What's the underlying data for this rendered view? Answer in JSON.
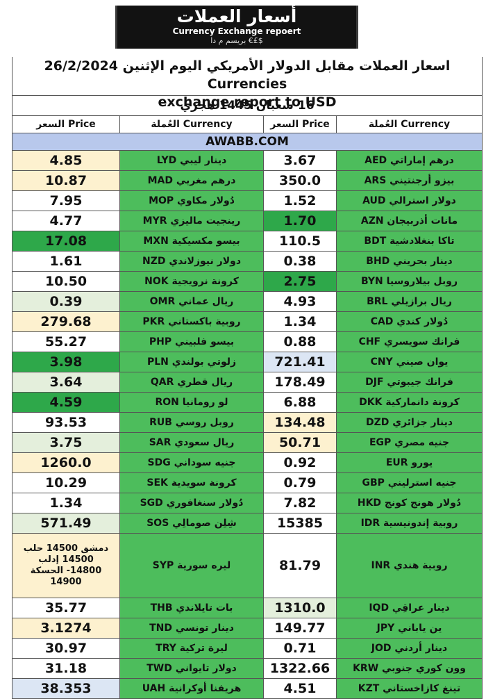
{
  "banner": {
    "arabic": "أسعار العملات",
    "english": "Currency Exchange repoert",
    "sub": "بريسم م دا €£$"
  },
  "header": {
    "title_line1": "اسعار العملات مقابل الدولار الأمريكي اليوم الإثنين 26/2/2024  Currencies",
    "title_line2": "exchange report to USD",
    "hijri": "16  شعبان 1445 هجري",
    "col_price_left": "السعر Price",
    "col_currency_left": "العُملة Currency",
    "col_price_right": "السعر Price",
    "col_currency_right": "العُملة Currency",
    "website": "AWABB.COM"
  },
  "colors": {
    "green": "#4dbd5c",
    "dark_green": "#2ea84a",
    "white": "#ffffff",
    "cream": "#fdf1cf",
    "light_green": "#e4efdc",
    "light_blue": "#dce6f4",
    "site_blue": "#b8c8ec"
  },
  "rows": [
    {
      "l_price": "4.85",
      "l_bg": "#fdf1cf",
      "l_cur": "دينار ليبي  LYD",
      "r_price": "3.67",
      "r_bg": "#ffffff",
      "r_cur": "درهم إماراتي  AED"
    },
    {
      "l_price": "10.87",
      "l_bg": "#fdf1cf",
      "l_cur": "درهم مغربي  MAD",
      "r_price": "350.0",
      "r_bg": "#ffffff",
      "r_cur": "بيزو أرجنتيني  ARS"
    },
    {
      "l_price": "7.95",
      "l_bg": "#ffffff",
      "l_cur": "دُولار مكاوي  MOP",
      "r_price": "1.52",
      "r_bg": "#ffffff",
      "r_cur": "دولار استرالي  AUD"
    },
    {
      "l_price": "4.77",
      "l_bg": "#ffffff",
      "l_cur": "رينجيت ماليزي  MYR",
      "r_price": "1.70",
      "r_bg": "#2ea84a",
      "r_cur": "مانات أذربيجان  AZN"
    },
    {
      "l_price": "17.08",
      "l_bg": "#2ea84a",
      "l_cur": "بيسو مكسيكية  MXN",
      "r_price": "110.5",
      "r_bg": "#ffffff",
      "r_cur": "تاكا بنغلادشية  BDT"
    },
    {
      "l_price": "1.61",
      "l_bg": "#ffffff",
      "l_cur": "دولار نيوزلاندي  NZD",
      "r_price": "0.38",
      "r_bg": "#ffffff",
      "r_cur": "دينار بحريني  BHD"
    },
    {
      "l_price": "10.50",
      "l_bg": "#ffffff",
      "l_cur": "كرونة نرويجية  NOK",
      "r_price": "2.75",
      "r_bg": "#2ea84a",
      "r_cur": "روبل بيلاروسيا  BYN"
    },
    {
      "l_price": "0.39",
      "l_bg": "#e4efdc",
      "l_cur": "ريال عماني  OMR",
      "r_price": "4.93",
      "r_bg": "#ffffff",
      "r_cur": "ريال برازيلي  BRL"
    },
    {
      "l_price": "279.68",
      "l_bg": "#fdf1cf",
      "l_cur": "روبية باكستاني  PKR",
      "r_price": "1.34",
      "r_bg": "#ffffff",
      "r_cur": "دُولار كندي  CAD"
    },
    {
      "l_price": "55.27",
      "l_bg": "#ffffff",
      "l_cur": "بيسو فلبيني  PHP",
      "r_price": "0.88",
      "r_bg": "#ffffff",
      "r_cur": "فرانك سويسري  CHF"
    },
    {
      "l_price": "3.98",
      "l_bg": "#2ea84a",
      "l_cur": "زلوتي بولندي  PLN",
      "r_price": "721.41",
      "r_bg": "#dce6f4",
      "r_cur": "يوان صيني  CNY"
    },
    {
      "l_price": "3.64",
      "l_bg": "#e4efdc",
      "l_cur": "ريال قطري  QAR",
      "r_price": "178.49",
      "r_bg": "#ffffff",
      "r_cur": "فرانك جيبوتي  DJF"
    },
    {
      "l_price": "4.59",
      "l_bg": "#2ea84a",
      "l_cur": "لو رومانيا  RON",
      "r_price": "6.88",
      "r_bg": "#ffffff",
      "r_cur": "كرونة دانماركية  DKK"
    },
    {
      "l_price": "93.53",
      "l_bg": "#ffffff",
      "l_cur": "روبل روسي  RUB",
      "r_price": "134.48",
      "r_bg": "#fdf1cf",
      "r_cur": "دينار جزائري  DZD"
    },
    {
      "l_price": "3.75",
      "l_bg": "#e4efdc",
      "l_cur": "ريال سعودي  SAR",
      "r_price": "50.71",
      "r_bg": "#fdf1cf",
      "r_cur": "جنيه مصري  EGP"
    },
    {
      "l_price": "1260.0",
      "l_bg": "#fdf1cf",
      "l_cur": "جنيه سوداني  SDG",
      "r_price": "0.92",
      "r_bg": "#ffffff",
      "r_cur": "يورو  EUR"
    },
    {
      "l_price": "10.29",
      "l_bg": "#ffffff",
      "l_cur": "كرونة سويدية  SEK",
      "r_price": "0.79",
      "r_bg": "#ffffff",
      "r_cur": "جنيه استرليني  GBP"
    },
    {
      "l_price": "1.34",
      "l_bg": "#ffffff",
      "l_cur": "دُولار سنغافوري  SGD",
      "r_price": "7.82",
      "r_bg": "#ffffff",
      "r_cur": "دُولار هونج كونج  HKD"
    },
    {
      "l_price": "571.49",
      "l_bg": "#e4efdc",
      "l_cur": "شِلِن صومالِي  SOS",
      "r_price": "15385",
      "r_bg": "#ffffff",
      "r_cur": "روبية إندونيسية  IDR"
    },
    {
      "l_price": "دمشق 14500 حلب 14500 إدلب 14800- الحسكة 14900",
      "l_bg": "#fdf1cf",
      "l_cur": "ليره سورية  SYP",
      "r_price": "81.79",
      "r_bg": "#ffffff",
      "r_cur": "روبية هندي  INR",
      "tall": true
    },
    {
      "l_price": "35.77",
      "l_bg": "#ffffff",
      "l_cur": "بات تايلاندي  THB",
      "r_price": "1310.0",
      "r_bg": "#e4efdc",
      "r_cur": "دينار عراقِي  IQD"
    },
    {
      "l_price": "3.1274",
      "l_bg": "#fdf1cf",
      "l_cur": "دينار تونسي  TND",
      "r_price": "149.77",
      "r_bg": "#ffffff",
      "r_cur": "ين ياباني  JPY"
    },
    {
      "l_price": "30.97",
      "l_bg": "#ffffff",
      "l_cur": "ليرة تركية  TRY",
      "r_price": "0.71",
      "r_bg": "#ffffff",
      "r_cur": "دينار أردني  JOD"
    },
    {
      "l_price": "31.18",
      "l_bg": "#ffffff",
      "l_cur": "دولار تايواني  TWD",
      "r_price": "1322.66",
      "r_bg": "#ffffff",
      "r_cur": "وون كوري جنوبي  KRW"
    },
    {
      "l_price": "38.353",
      "l_bg": "#dce6f4",
      "l_cur": "هريفنا أوكرانية  UAH",
      "r_price": "4.51",
      "r_bg": "#ffffff",
      "r_cur": "تينغ كازاخستاني  KZT"
    }
  ]
}
